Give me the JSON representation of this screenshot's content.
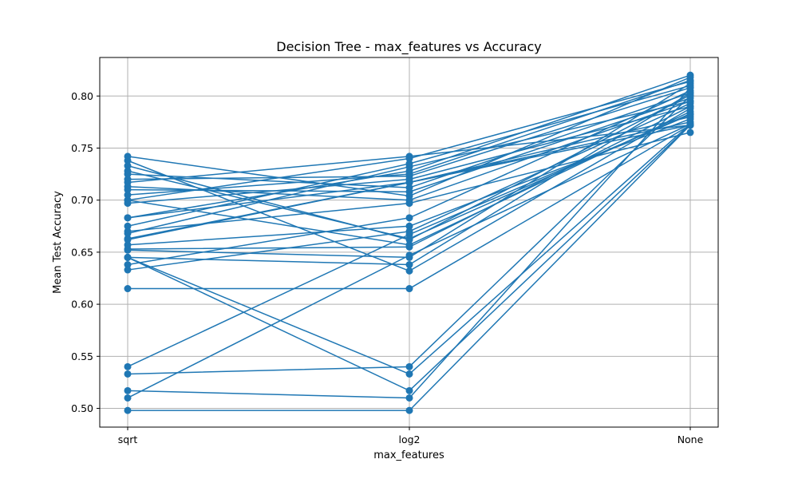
{
  "chart_data": {
    "type": "line",
    "title": "Decision Tree - max_features vs Accuracy",
    "xlabel": "max_features",
    "ylabel": "Mean Test Accuracy",
    "categories": [
      "sqrt",
      "log2",
      "None"
    ],
    "ylim": [
      0.482,
      0.837
    ],
    "yticks": [
      0.5,
      0.55,
      0.6,
      0.65,
      0.7,
      0.75,
      0.8
    ],
    "ytick_labels": [
      "0.50",
      "0.55",
      "0.60",
      "0.65",
      "0.70",
      "0.75",
      "0.80"
    ],
    "grid": true,
    "color": "#1f77b4",
    "marker": "circle",
    "series": [
      {
        "values": [
          0.742,
          0.704,
          0.818
        ]
      },
      {
        "values": [
          0.738,
          0.632,
          0.788
        ]
      },
      {
        "values": [
          0.733,
          0.662,
          0.801
        ]
      },
      {
        "values": [
          0.717,
          0.742,
          0.772
        ]
      },
      {
        "values": [
          0.7,
          0.74,
          0.814
        ]
      },
      {
        "values": [
          0.683,
          0.717,
          0.772
        ]
      },
      {
        "values": [
          0.668,
          0.732,
          0.795
        ]
      },
      {
        "values": [
          0.663,
          0.717,
          0.775
        ]
      },
      {
        "values": [
          0.662,
          0.717,
          0.78
        ]
      },
      {
        "values": [
          0.652,
          0.645,
          0.812
        ]
      },
      {
        "values": [
          0.645,
          0.638,
          0.803
        ]
      },
      {
        "values": [
          0.638,
          0.683,
          0.805
        ]
      },
      {
        "values": [
          0.533,
          0.54,
          0.8
        ]
      },
      {
        "values": [
          0.517,
          0.51,
          0.808
        ]
      },
      {
        "values": [
          0.51,
          0.647,
          0.773
        ]
      },
      {
        "values": [
          0.645,
          0.533,
          0.773
        ]
      },
      {
        "values": [
          0.645,
          0.517,
          0.772
        ]
      },
      {
        "values": [
          0.653,
          0.655,
          0.79
        ]
      },
      {
        "values": [
          0.7,
          0.657,
          0.785
        ]
      },
      {
        "values": [
          0.728,
          0.663,
          0.783
        ]
      },
      {
        "values": [
          0.713,
          0.7,
          0.795
        ]
      },
      {
        "values": [
          0.71,
          0.708,
          0.798
        ]
      },
      {
        "values": [
          0.725,
          0.712,
          0.803
        ]
      },
      {
        "values": [
          0.697,
          0.72,
          0.79
        ]
      },
      {
        "values": [
          0.72,
          0.723,
          0.808
        ]
      },
      {
        "values": [
          0.705,
          0.725,
          0.815
        ]
      },
      {
        "values": [
          0.683,
          0.728,
          0.82
        ]
      },
      {
        "values": [
          0.675,
          0.735,
          0.81
        ]
      },
      {
        "values": [
          0.67,
          0.697,
          0.765
        ]
      },
      {
        "values": [
          0.657,
          0.675,
          0.778
        ]
      },
      {
        "values": [
          0.633,
          0.67,
          0.793
        ]
      },
      {
        "values": [
          0.615,
          0.615,
          0.772
        ]
      },
      {
        "values": [
          0.54,
          0.667,
          0.782
        ]
      },
      {
        "values": [
          0.498,
          0.498,
          0.772
        ]
      }
    ]
  }
}
